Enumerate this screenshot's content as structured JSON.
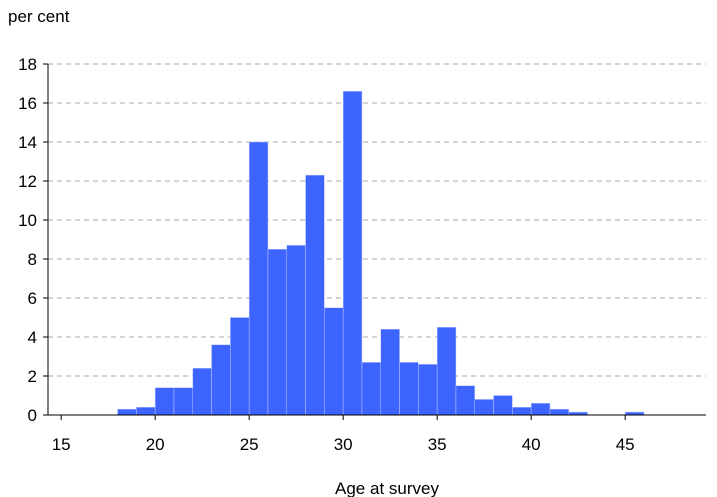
{
  "chart_data": {
    "type": "bar",
    "title": "",
    "ylabel": "per cent",
    "xlabel": "Age at survey",
    "bin_width": 1,
    "bin_starts": [
      18,
      19,
      20,
      21,
      22,
      23,
      24,
      25,
      26,
      27,
      28,
      29,
      30,
      31,
      32,
      33,
      34,
      35,
      36,
      37,
      38,
      39,
      40,
      41,
      42,
      43,
      44,
      45
    ],
    "values": [
      0.3,
      0.4,
      1.4,
      1.4,
      2.4,
      3.6,
      5.0,
      14.0,
      8.5,
      8.7,
      12.3,
      5.5,
      16.6,
      2.7,
      4.4,
      2.7,
      2.6,
      4.5,
      1.5,
      0.8,
      1.0,
      0.4,
      0.6,
      0.3,
      0.15,
      0,
      0,
      0.15
    ],
    "xlim": [
      14.3,
      49.3
    ],
    "ylim": [
      0,
      18
    ],
    "x_ticks": [
      15,
      20,
      25,
      30,
      35,
      40,
      45
    ],
    "y_ticks": [
      0,
      2,
      4,
      6,
      8,
      10,
      12,
      14,
      16,
      18
    ],
    "grid": "horizontal dashed",
    "bar_color": "#3e64ff",
    "grid_color": "#aaaaaa"
  }
}
